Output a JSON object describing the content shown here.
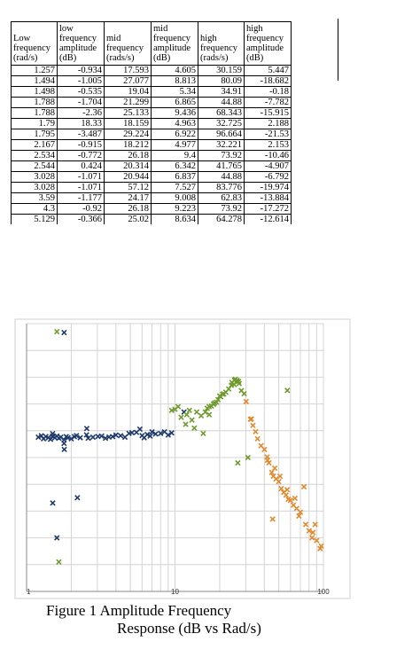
{
  "table": {
    "headers": [
      "Low frequency (rad/s)",
      "low frequency amplitude (dB)",
      "mid frequency (rads/s)",
      "mid frequency amplitude (dB)",
      "high frequency (rads/s)",
      "high frequency amplitude (dB)"
    ],
    "rows": [
      [
        "1.257",
        "-0.934",
        "17.593",
        "4.605",
        "30.159",
        "5.447"
      ],
      [
        "1.494",
        "-1.005",
        "27.077",
        "8.813",
        "80.09",
        "-18.682"
      ],
      [
        "1.498",
        "-0.535",
        "19.04",
        "5.34",
        "34.91",
        "-0.18"
      ],
      [
        "1.788",
        "-1.704",
        "21.299",
        "6.865",
        "44.88",
        "-7.782"
      ],
      [
        "1.788",
        "-2.36",
        "25.133",
        "9.436",
        "68.343",
        "-15.915"
      ],
      [
        "1.79",
        "18.33",
        "18.159",
        "4.963",
        "32.725",
        "2.188"
      ],
      [
        "1.795",
        "-3.487",
        "29.224",
        "6.922",
        "96.664",
        "-21.53"
      ],
      [
        "2.167",
        "-0.915",
        "18.212",
        "4.977",
        "32.221",
        "2.153"
      ],
      [
        "2.534",
        "-0.772",
        "26.18",
        "9.4",
        "73.92",
        "-10.46"
      ],
      [
        "2.544",
        "0.424",
        "20.314",
        "6.342",
        "41.765",
        "-4.907"
      ],
      [
        "3.028",
        "-1.071",
        "20.944",
        "6.837",
        "44.88",
        "-6.792"
      ],
      [
        "3.028",
        "-1.071",
        "57.12",
        "7.527",
        "83.776",
        "-19.974"
      ],
      [
        "3.59",
        "-1.177",
        "24.17",
        "9.008",
        "62.83",
        "-13.884"
      ],
      [
        "4.3",
        "-0.92",
        "26.18",
        "9.223",
        "73.92",
        "-17.272"
      ],
      [
        "5.129",
        "-0.366",
        "25.02",
        "8.634",
        "64.278",
        "-12.614"
      ]
    ]
  },
  "chart_data": {
    "type": "scatter",
    "x_scale": "log",
    "xlim": [
      1,
      100
    ],
    "ylim": [
      -30,
      20
    ],
    "x_tick_labels": [
      "1",
      "10",
      "100"
    ],
    "grid": true,
    "series": [
      {
        "color": "#1f3b6b",
        "points": [
          [
            1.257,
            -0.934
          ],
          [
            1.494,
            -1.005
          ],
          [
            1.498,
            -0.535
          ],
          [
            1.788,
            -1.704
          ],
          [
            1.788,
            -2.36
          ],
          [
            1.79,
            18.33
          ],
          [
            1.795,
            -3.487
          ],
          [
            2.167,
            -0.915
          ],
          [
            2.534,
            -0.772
          ],
          [
            2.544,
            0.424
          ],
          [
            3.028,
            -1.071
          ],
          [
            3.59,
            -1.177
          ],
          [
            4.3,
            -0.92
          ],
          [
            5.129,
            -0.366
          ],
          [
            1.2,
            -1.2
          ],
          [
            1.3,
            -1.5
          ],
          [
            1.35,
            -1.1
          ],
          [
            1.4,
            -1.3
          ],
          [
            1.45,
            -1.6
          ],
          [
            1.55,
            -1.3
          ],
          [
            1.6,
            -1.0
          ],
          [
            1.65,
            -1.4
          ],
          [
            1.7,
            -1.2
          ],
          [
            1.85,
            -1.1
          ],
          [
            1.9,
            -1.3
          ],
          [
            2.0,
            -1.5
          ],
          [
            2.1,
            -1.1
          ],
          [
            2.3,
            -1.3
          ],
          [
            2.6,
            -1.4
          ],
          [
            2.8,
            -1.2
          ],
          [
            3.2,
            -1.0
          ],
          [
            3.4,
            -1.4
          ],
          [
            3.8,
            -1.1
          ],
          [
            4.0,
            -0.8
          ],
          [
            4.6,
            -1.2
          ],
          [
            4.9,
            -0.5
          ],
          [
            5.5,
            -0.3
          ],
          [
            6.0,
            -0.9
          ],
          [
            6.2,
            -1.3
          ],
          [
            6.5,
            -0.7
          ],
          [
            7.0,
            -0.2
          ],
          [
            7.4,
            -0.6
          ],
          [
            6.8,
            -1.0
          ],
          [
            8.0,
            -0.5
          ],
          [
            9.0,
            -0.8
          ],
          [
            9.5,
            -0.4
          ],
          [
            5.8,
            0.3
          ],
          [
            1.5,
            -13.5
          ],
          [
            1.6,
            -20.0
          ],
          [
            2.2,
            -12.5
          ],
          [
            11.5,
            3.5
          ],
          [
            8.5,
            -0.2
          ]
        ]
      },
      {
        "color": "#6f9a2c",
        "points": [
          [
            17.593,
            4.605
          ],
          [
            27.077,
            8.813
          ],
          [
            19.04,
            5.34
          ],
          [
            21.299,
            6.865
          ],
          [
            25.133,
            9.436
          ],
          [
            18.159,
            4.963
          ],
          [
            29.224,
            6.922
          ],
          [
            18.212,
            4.977
          ],
          [
            26.18,
            9.4
          ],
          [
            20.314,
            6.342
          ],
          [
            20.944,
            6.837
          ],
          [
            57.12,
            7.527
          ],
          [
            24.17,
            9.008
          ],
          [
            26.18,
            9.223
          ],
          [
            25.02,
            8.634
          ],
          [
            10.0,
            4.0
          ],
          [
            11.0,
            2.5
          ],
          [
            12.0,
            3.0
          ],
          [
            13.0,
            2.0
          ],
          [
            14.0,
            3.5
          ],
          [
            15.0,
            2.8
          ],
          [
            16.0,
            3.5
          ],
          [
            16.5,
            4.2
          ],
          [
            17.0,
            3.0
          ],
          [
            19.5,
            5.8
          ],
          [
            20.0,
            6.5
          ],
          [
            22.0,
            7.2
          ],
          [
            23.0,
            7.8
          ],
          [
            24.0,
            8.5
          ],
          [
            25.5,
            9.6
          ],
          [
            26.8,
            9.2
          ],
          [
            28.0,
            7.5
          ],
          [
            12.5,
            3.8
          ],
          [
            10.5,
            4.5
          ],
          [
            9.5,
            3.8
          ],
          [
            11.8,
            1.2
          ],
          [
            13.5,
            0.5
          ],
          [
            15.5,
            -0.5
          ],
          [
            26.5,
            -6.0
          ],
          [
            31.0,
            -5.0
          ],
          [
            17.0,
            4.5
          ],
          [
            18.5,
            5.2
          ],
          [
            1.6,
            18.5
          ],
          [
            1.65,
            -24.5
          ]
        ]
      },
      {
        "color": "#e08a2e",
        "points": [
          [
            30.159,
            5.447
          ],
          [
            80.09,
            -18.682
          ],
          [
            34.91,
            -0.18
          ],
          [
            44.88,
            -7.782
          ],
          [
            68.343,
            -15.915
          ],
          [
            32.725,
            2.188
          ],
          [
            96.664,
            -21.53
          ],
          [
            32.221,
            2.153
          ],
          [
            73.92,
            -10.46
          ],
          [
            41.765,
            -4.907
          ],
          [
            83.776,
            -19.974
          ],
          [
            62.83,
            -13.884
          ],
          [
            64.278,
            -12.614
          ],
          [
            33.5,
            1.0
          ],
          [
            36.0,
            -1.5
          ],
          [
            38.0,
            -2.8
          ],
          [
            40.0,
            -3.5
          ],
          [
            43.0,
            -6.0
          ],
          [
            46.0,
            -8.5
          ],
          [
            48.0,
            -9.0
          ],
          [
            50.0,
            -9.5
          ],
          [
            52.0,
            -10.8
          ],
          [
            54.0,
            -11.5
          ],
          [
            56.0,
            -12.0
          ],
          [
            58.0,
            -12.8
          ],
          [
            60.0,
            -13.0
          ],
          [
            66.0,
            -14.5
          ],
          [
            70.0,
            -15.2
          ],
          [
            76.0,
            -17.5
          ],
          [
            85.0,
            -19.0
          ],
          [
            90.0,
            -20.5
          ],
          [
            95.0,
            -22.0
          ],
          [
            45.5,
            -16.5
          ],
          [
            88.0,
            -17.5
          ],
          [
            57.0,
            -11.0
          ],
          [
            47.0,
            -7.0
          ],
          [
            42.0,
            -5.5
          ],
          [
            51.0,
            -8.5
          ]
        ]
      }
    ]
  },
  "caption": {
    "line1": "Figure 1   Amplitude Frequency",
    "line2": "Response (dB vs Rad/s)"
  }
}
